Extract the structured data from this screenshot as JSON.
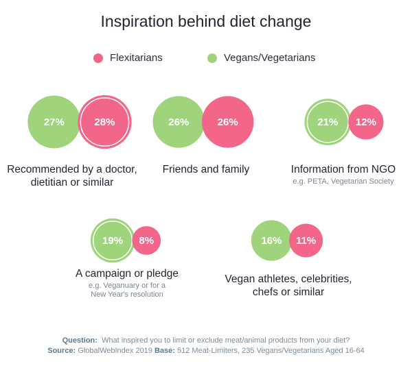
{
  "chart_data": {
    "type": "bubble",
    "title": "Inspiration behind diet change",
    "legend": {
      "position": "top-center"
    },
    "series": [
      {
        "name": "Flexitarians",
        "color": "#f2668a"
      },
      {
        "name": "Vegans/Vegetarians",
        "color": "#9fd47d"
      }
    ],
    "categories": [
      {
        "label": "Recommended by a doctor, dietitian or similar",
        "sublabel": "",
        "vegans": 27,
        "vegans_label": "27%",
        "flexitarians": 28,
        "flexitarians_label": "28%",
        "highlighted": "flexitarians"
      },
      {
        "label": "Friends and family",
        "sublabel": "",
        "vegans": 26,
        "vegans_label": "26%",
        "flexitarians": 26,
        "flexitarians_label": "26%",
        "highlighted": "none"
      },
      {
        "label": "Information from NGO",
        "sublabel": "e.g. PETA, Vegetarian Society",
        "vegans": 21,
        "vegans_label": "21%",
        "flexitarians": 12,
        "flexitarians_label": "12%",
        "highlighted": "vegans"
      },
      {
        "label": "A campaign or pledge",
        "sublabel": "e.g. Veganuary or for a New Year's resolution",
        "vegans": 19,
        "vegans_label": "19%",
        "flexitarians": 8,
        "flexitarians_label": "8%",
        "highlighted": "vegans"
      },
      {
        "label": "Vegan athletes, celebrities, chefs or similar",
        "sublabel": "",
        "vegans": 16,
        "vegans_label": "16%",
        "flexitarians": 11,
        "flexitarians_label": "11%",
        "highlighted": "none"
      }
    ]
  },
  "footer": {
    "question_label": "Question:",
    "question_text": "What inspired you to limit or exclude meat/animal products from your diet?",
    "source_label": "Source:",
    "source_text": "GlobalWebIndex 2019",
    "base_label": "Base:",
    "base_text": "512 Meat-Limiters, 235 Vegans/Vegetarians Aged 16-64"
  }
}
